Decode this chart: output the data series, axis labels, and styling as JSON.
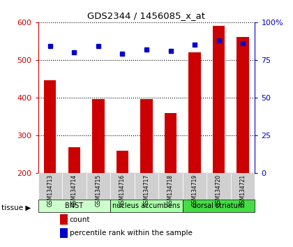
{
  "title": "GDS2344 / 1456085_x_at",
  "samples": [
    "GSM134713",
    "GSM134714",
    "GSM134715",
    "GSM134716",
    "GSM134717",
    "GSM134718",
    "GSM134719",
    "GSM134720",
    "GSM134721"
  ],
  "counts": [
    447,
    268,
    397,
    260,
    397,
    360,
    520,
    590,
    560
  ],
  "percentiles": [
    84,
    80,
    84,
    79,
    82,
    81,
    85,
    88,
    86
  ],
  "bar_bottom": 200,
  "ylim": [
    200,
    600
  ],
  "yticks": [
    200,
    300,
    400,
    500,
    600
  ],
  "y2lim": [
    0,
    100
  ],
  "y2ticks": [
    0,
    25,
    50,
    75,
    100
  ],
  "bar_color": "#cc0000",
  "dot_color": "#0000cc",
  "tissue_groups": [
    {
      "label": "BNST",
      "start": 0,
      "end": 3,
      "color": "#ccffcc"
    },
    {
      "label": "nucleus accumbens",
      "start": 3,
      "end": 6,
      "color": "#aaffaa"
    },
    {
      "label": "dorsal striatum",
      "start": 6,
      "end": 9,
      "color": "#44dd44"
    }
  ],
  "tissue_label": "tissue",
  "legend_count": "count",
  "legend_pct": "percentile rank within the sample",
  "background_color": "#ffffff",
  "plot_bg": "#ffffff",
  "sample_box_color": "#d0d0d0"
}
